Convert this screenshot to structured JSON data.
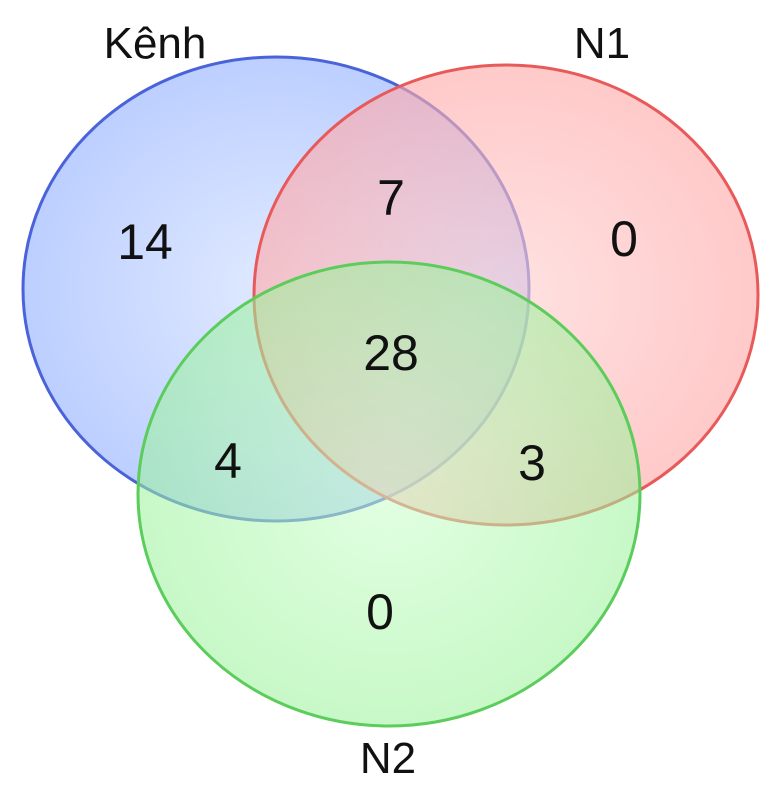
{
  "sets": {
    "kenh": {
      "label": "Kênh",
      "color": "#6f8cf2"
    },
    "n1": {
      "label": "N1",
      "color": "#ff8a8a"
    },
    "n2": {
      "label": "N2",
      "color": "#7fe07f"
    }
  },
  "regions": {
    "kenh_only": "14",
    "n1_only": "0",
    "n2_only": "0",
    "kenh_n1": "7",
    "kenh_n2": "4",
    "n1_n2": "3",
    "all": "28"
  }
}
